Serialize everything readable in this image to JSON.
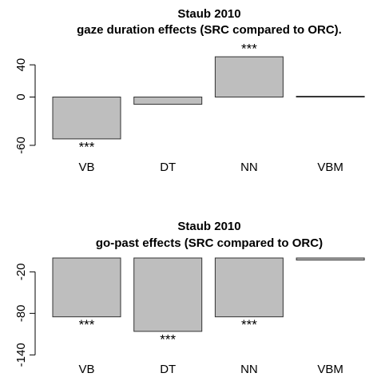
{
  "chart_data": [
    {
      "type": "bar",
      "title": "Staub 2010",
      "subtitle": "gaze duration effects (SRC compared to ORC).",
      "categories": [
        "VB",
        "DT",
        "NN",
        "VBM"
      ],
      "values": [
        -52,
        -9,
        50,
        1
      ],
      "color": "#bebebe",
      "ylim": [
        -64,
        60
      ],
      "yticks": [
        -60,
        0,
        40
      ],
      "annotations": [
        {
          "text": "***",
          "category": "VB"
        },
        {
          "text": "***",
          "category": "NN"
        }
      ]
    },
    {
      "type": "bar",
      "title": "Staub 2010",
      "subtitle": "go-past effects (SRC compared to ORC)",
      "categories": [
        "VB",
        "DT",
        "NN",
        "VBM"
      ],
      "values": [
        -85,
        -106,
        -85,
        -3
      ],
      "color": "#bebebe",
      "ylim": [
        -150,
        0
      ],
      "yticks": [
        -20,
        -80,
        -140
      ],
      "annotations": [
        {
          "text": "***",
          "category": "VB"
        },
        {
          "text": "***",
          "category": "DT"
        },
        {
          "text": "***",
          "category": "NN"
        }
      ]
    }
  ]
}
